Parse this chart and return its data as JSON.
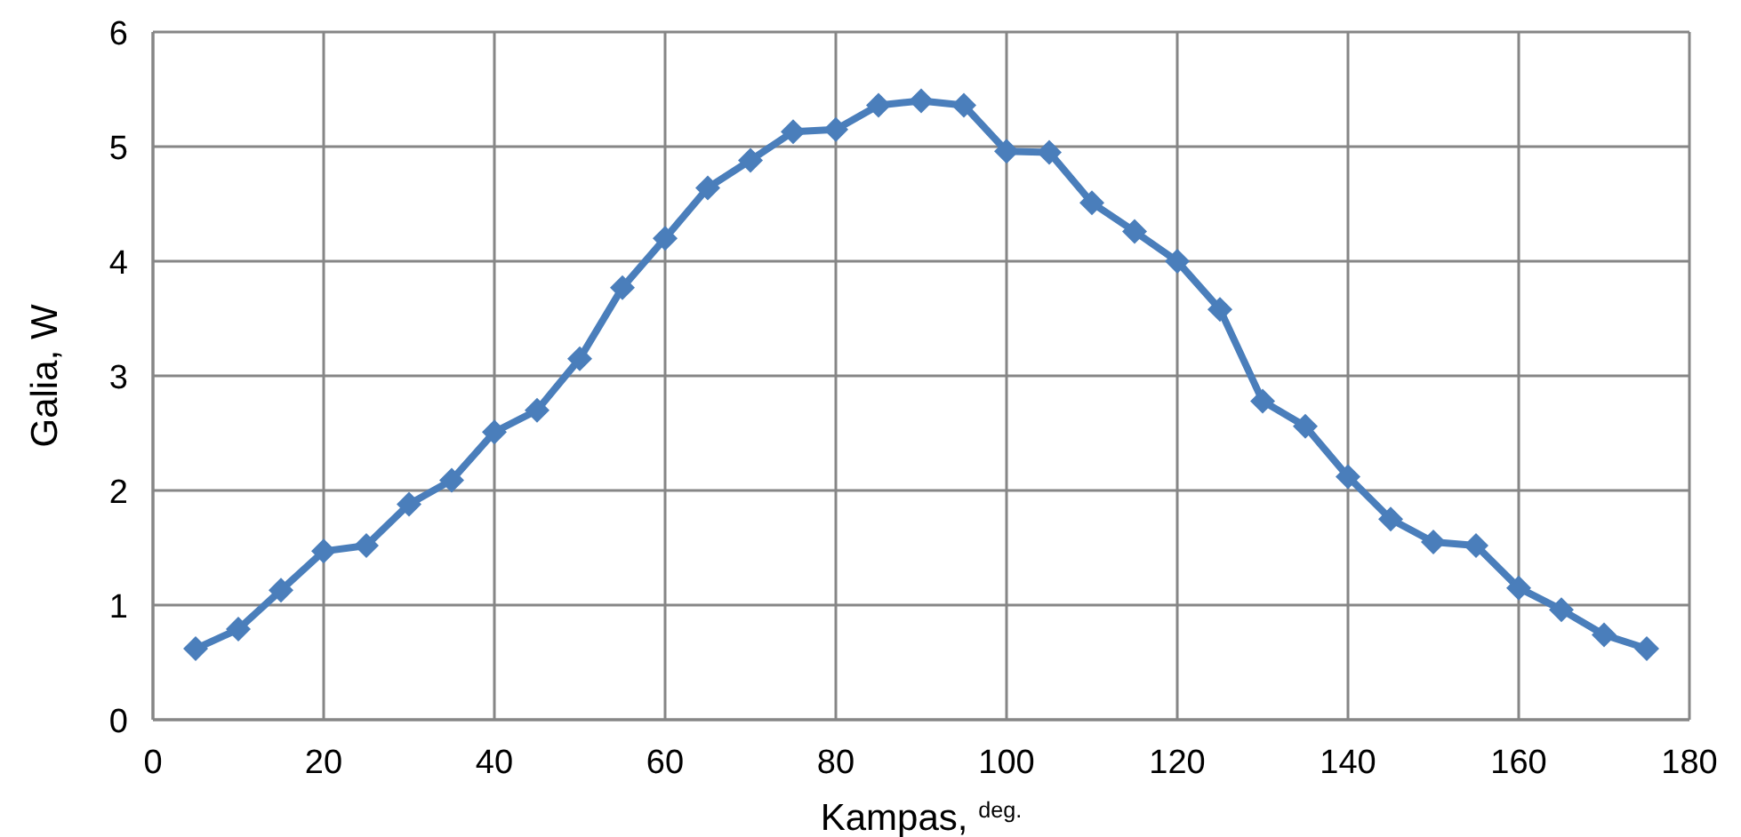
{
  "chart_data": {
    "type": "line",
    "xlabel": "Kampas, $^{deg.}$",
    "ylabel": "Galia, W",
    "x": [
      5,
      10,
      15,
      20,
      25,
      30,
      35,
      40,
      45,
      50,
      55,
      60,
      65,
      70,
      75,
      80,
      85,
      90,
      95,
      100,
      105,
      110,
      115,
      120,
      125,
      130,
      135,
      140,
      145,
      150,
      155,
      160,
      165,
      170,
      175
    ],
    "series": [
      {
        "color": "#4a7ebb",
        "values": [
          0.62,
          0.79,
          1.13,
          1.47,
          1.52,
          1.88,
          2.09,
          2.51,
          2.7,
          3.15,
          3.77,
          4.2,
          4.64,
          4.88,
          5.13,
          5.15,
          5.36,
          5.4,
          5.36,
          4.96,
          4.95,
          4.51,
          4.26,
          4.0,
          3.58,
          2.78,
          2.56,
          2.12,
          1.75,
          1.55,
          1.52,
          1.15,
          0.96,
          0.74,
          0.62
        ]
      }
    ],
    "xlim": [
      0,
      180
    ],
    "xticks": [
      0,
      20,
      40,
      60,
      80,
      100,
      120,
      140,
      160,
      180
    ],
    "ylim": [
      0,
      6
    ],
    "yticks": [
      0,
      1,
      2,
      3,
      4,
      5,
      6
    ],
    "grid": true,
    "marker": "diamond",
    "line_style": "solid"
  }
}
